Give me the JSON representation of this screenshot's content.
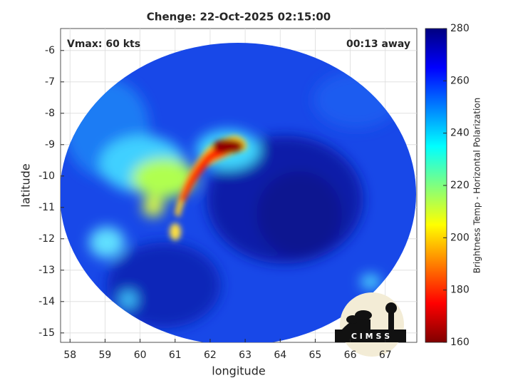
{
  "chart_data": {
    "type": "image",
    "title": "Chenge: 22-Oct-2025 02:15:00",
    "annotations": [
      "Vmax: 60 kts",
      "00:13 away"
    ],
    "xlabel": "longitude",
    "ylabel": "latitude",
    "xlim": [
      57.73,
      67.9
    ],
    "xticks": [
      58,
      59,
      60,
      61,
      62,
      63,
      64,
      65,
      66,
      67
    ],
    "ylim": [
      -15.3,
      -5.3
    ],
    "yticks": [
      -15,
      -14,
      -13,
      -12,
      -11,
      -10,
      -9,
      -8,
      -7,
      -6
    ],
    "grid": true,
    "colorbar": {
      "label": "Brightness Temp - Horizontal Polarization",
      "lim": [
        160,
        280
      ],
      "ticks": [
        160,
        180,
        200,
        220,
        240,
        260,
        280
      ],
      "colormap": "jet"
    }
  },
  "logo": {
    "text": "C I M S S"
  }
}
